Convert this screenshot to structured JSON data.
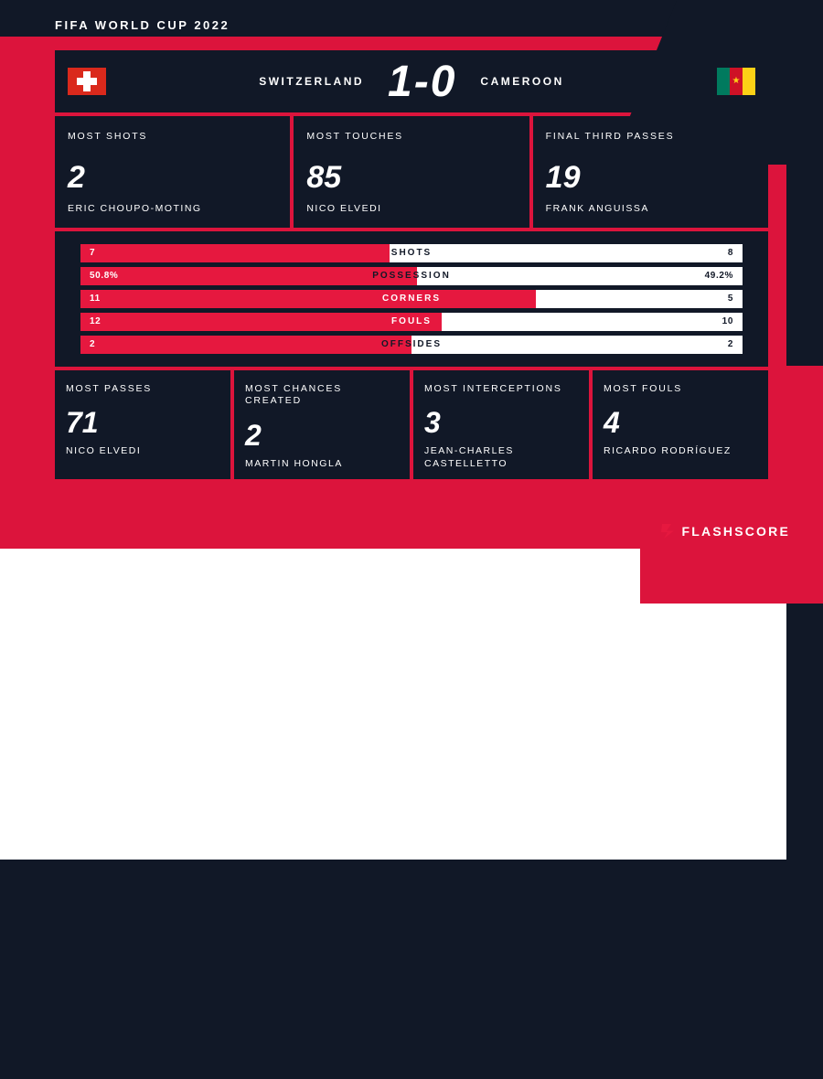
{
  "event": {
    "title": "FIFA WORLD CUP 2022"
  },
  "match": {
    "team_a": "SWITZERLAND",
    "team_b": "CAMEROON",
    "score": "1-0",
    "flag_a": {
      "type": "switzerland",
      "bg": "#da291c",
      "cross": "#ffffff"
    },
    "flag_b": {
      "type": "cameroon",
      "stripes": [
        "#007a5e",
        "#ce1126",
        "#fcd116"
      ],
      "star": "#fcd116"
    }
  },
  "colors": {
    "card_bg": "#111827",
    "accent": "#e6183f",
    "page_red": "#dc143c",
    "text": "#ffffff",
    "bar_bg": "#ffffff"
  },
  "typography": {
    "label_fontsize": 10.5,
    "value_fontsize": 34,
    "score_fontsize": 48,
    "letter_spacing_label": 1.8
  },
  "top_stats": [
    {
      "label": "MOST SHOTS",
      "value": "2",
      "player": "ERIC CHOUPO-MOTING"
    },
    {
      "label": "MOST TOUCHES",
      "value": "85",
      "player": "NICO ELVEDI"
    },
    {
      "label": "FINAL THIRD PASSES",
      "value": "19",
      "player": "FRANK ANGUISSA"
    }
  ],
  "comparison_bars": [
    {
      "label": "SHOTS",
      "left": "7",
      "right": "8",
      "fill_pct": 46.7
    },
    {
      "label": "POSSESSION",
      "left": "50.8%",
      "right": "49.2%",
      "fill_pct": 50.8
    },
    {
      "label": "CORNERS",
      "left": "11",
      "right": "5",
      "fill_pct": 68.8
    },
    {
      "label": "FOULS",
      "left": "12",
      "right": "10",
      "fill_pct": 54.5
    },
    {
      "label": "OFFSIDES",
      "left": "2",
      "right": "2",
      "fill_pct": 50.0
    }
  ],
  "bottom_stats": [
    {
      "label": "MOST PASSES",
      "value": "71",
      "player": "NICO ELVEDI"
    },
    {
      "label": "MOST CHANCES CREATED",
      "value": "2",
      "player": "MARTIN HONGLA"
    },
    {
      "label": "MOST INTERCEPTIONS",
      "value": "3",
      "player": "JEAN-CHARLES CASTELLETTO"
    },
    {
      "label": "MOST FOULS",
      "value": "4",
      "player": "RICARDO RODRÍGUEZ"
    }
  ],
  "brand": {
    "name": "FLASHSCORE"
  }
}
